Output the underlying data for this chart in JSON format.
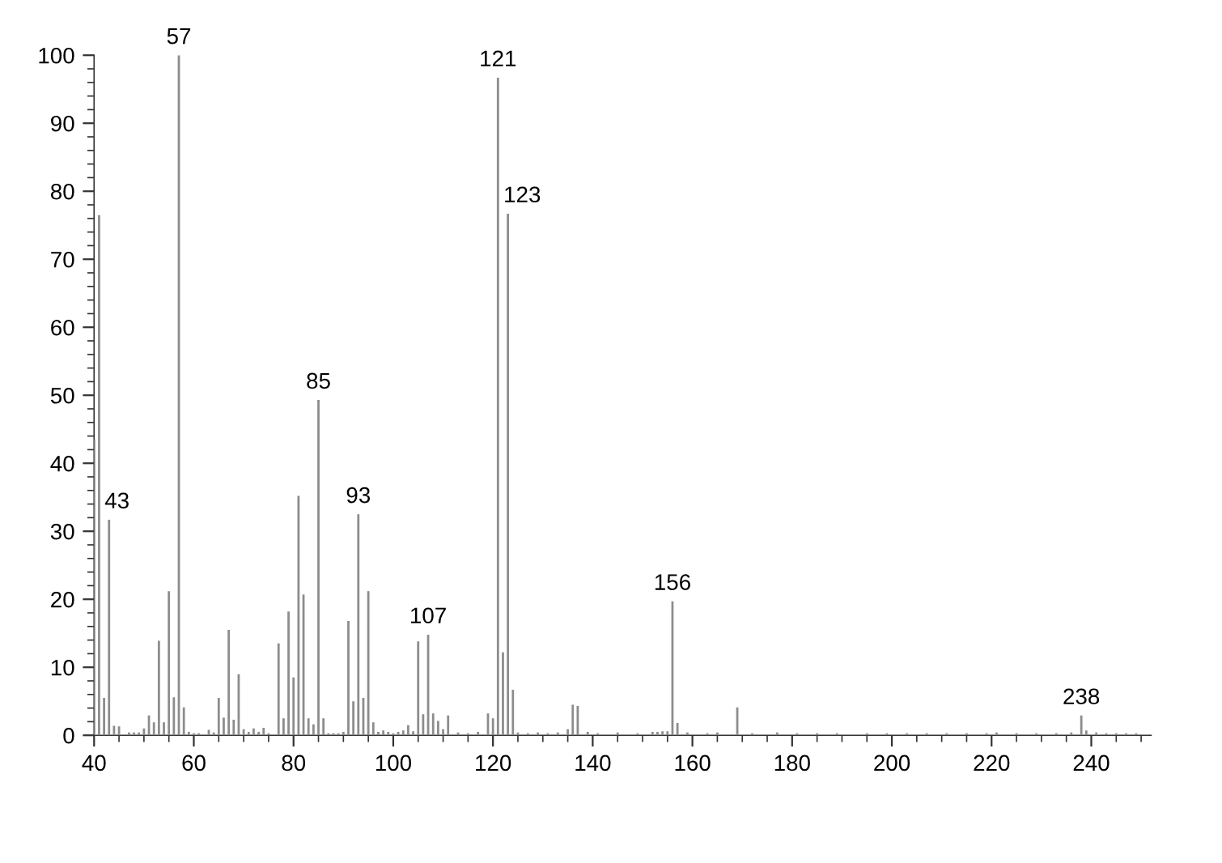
{
  "chart_data": {
    "type": "bar",
    "x": [
      40,
      41,
      42,
      43,
      44,
      45,
      47,
      48,
      49,
      50,
      51,
      52,
      53,
      54,
      55,
      56,
      57,
      58,
      59,
      60,
      61,
      63,
      64,
      65,
      66,
      67,
      68,
      69,
      70,
      71,
      72,
      73,
      74,
      75,
      77,
      78,
      79,
      80,
      81,
      82,
      83,
      84,
      85,
      86,
      87,
      88,
      89,
      90,
      91,
      92,
      93,
      94,
      95,
      96,
      97,
      98,
      99,
      100,
      101,
      102,
      103,
      104,
      105,
      106,
      107,
      108,
      109,
      110,
      111,
      113,
      115,
      117,
      119,
      120,
      121,
      122,
      123,
      124,
      125,
      127,
      129,
      131,
      133,
      135,
      136,
      137,
      139,
      141,
      145,
      149,
      152,
      153,
      154,
      155,
      156,
      157,
      159,
      163,
      165,
      169,
      172,
      177,
      181,
      185,
      189,
      195,
      199,
      203,
      207,
      211,
      215,
      219,
      221,
      225,
      229,
      233,
      236,
      238,
      239,
      241,
      243,
      245,
      247,
      249
    ],
    "values": [
      43.5,
      76.5,
      5.5,
      31.7,
      1.4,
      1.3,
      0.4,
      0.4,
      0.4,
      1.0,
      2.9,
      1.9,
      13.9,
      1.9,
      21.2,
      5.6,
      100,
      4.1,
      0.5,
      0.3,
      0.3,
      0.8,
      0.4,
      5.5,
      2.6,
      15.5,
      2.3,
      9.0,
      0.9,
      0.5,
      1.0,
      0.5,
      1.1,
      0.3,
      13.5,
      2.5,
      18.2,
      8.5,
      35.2,
      20.7,
      2.5,
      1.6,
      49.3,
      2.5,
      0.3,
      0.3,
      0.3,
      0.5,
      16.8,
      5.0,
      32.5,
      5.5,
      21.2,
      1.9,
      0.5,
      0.7,
      0.5,
      0.3,
      0.5,
      0.7,
      1.5,
      0.6,
      13.8,
      3.1,
      14.8,
      3.2,
      2.1,
      0.9,
      2.9,
      0.4,
      0.3,
      0.5,
      3.2,
      2.5,
      96.7,
      12.2,
      76.7,
      6.7,
      0.4,
      0.3,
      0.4,
      0.3,
      0.4,
      0.9,
      4.5,
      4.3,
      0.5,
      0.3,
      0.4,
      0.3,
      0.5,
      0.5,
      0.6,
      0.6,
      19.7,
      1.8,
      0.4,
      0.3,
      0.4,
      4.1,
      0.3,
      0.4,
      0.3,
      0.3,
      0.3,
      0.3,
      0.3,
      0.3,
      0.3,
      0.3,
      0.3,
      0.3,
      0.4,
      0.3,
      0.3,
      0.3,
      0.4,
      2.9,
      0.7,
      0.4,
      0.3,
      0.3,
      0.3,
      0.3
    ],
    "color": "#8c8c8c",
    "xlim": [
      40,
      252
    ],
    "xticks": [
      40,
      {
        "value": 45,
        "label": null
      },
      {
        "value": 50,
        "label": null
      },
      {
        "value": 55,
        "label": null
      },
      60,
      {
        "value": 65,
        "label": null
      },
      {
        "value": 70,
        "label": null
      },
      {
        "value": 75,
        "label": null
      },
      80,
      {
        "value": 85,
        "label": null
      },
      {
        "value": 90,
        "label": null
      },
      {
        "value": 95,
        "label": null
      },
      100,
      {
        "value": 105,
        "label": null
      },
      {
        "value": 110,
        "label": null
      },
      {
        "value": 115,
        "label": null
      },
      120,
      {
        "value": 125,
        "label": null
      },
      {
        "value": 130,
        "label": null
      },
      {
        "value": 135,
        "label": null
      },
      140,
      {
        "value": 145,
        "label": null
      },
      {
        "value": 150,
        "label": null
      },
      {
        "value": 155,
        "label": null
      },
      160,
      {
        "value": 165,
        "label": null
      },
      {
        "value": 170,
        "label": null
      },
      {
        "value": 175,
        "label": null
      },
      180,
      {
        "value": 185,
        "label": null
      },
      {
        "value": 190,
        "label": null
      },
      {
        "value": 195,
        "label": null
      },
      200,
      {
        "value": 205,
        "label": null
      },
      {
        "value": 210,
        "label": null
      },
      {
        "value": 215,
        "label": null
      },
      220,
      {
        "value": 225,
        "label": null
      },
      {
        "value": 230,
        "label": null
      },
      {
        "value": 235,
        "label": null
      },
      240,
      {
        "value": 245,
        "label": null
      },
      {
        "value": 250,
        "label": null
      }
    ],
    "ylim": [
      0,
      100
    ],
    "yticks": [
      0,
      {
        "value": 2,
        "label": null
      },
      {
        "value": 4,
        "label": null
      },
      {
        "value": 6,
        "label": null
      },
      {
        "value": 8,
        "label": null
      },
      10,
      {
        "value": 12,
        "label": null
      },
      {
        "value": 14,
        "label": null
      },
      {
        "value": 16,
        "label": null
      },
      {
        "value": 18,
        "label": null
      },
      20,
      {
        "value": 22,
        "label": null
      },
      {
        "value": 24,
        "label": null
      },
      {
        "value": 26,
        "label": null
      },
      {
        "value": 28,
        "label": null
      },
      30,
      {
        "value": 32,
        "label": null
      },
      {
        "value": 34,
        "label": null
      },
      {
        "value": 36,
        "label": null
      },
      {
        "value": 38,
        "label": null
      },
      40,
      {
        "value": 42,
        "label": null
      },
      {
        "value": 44,
        "label": null
      },
      {
        "value": 46,
        "label": null
      },
      {
        "value": 48,
        "label": null
      },
      50,
      {
        "value": 52,
        "label": null
      },
      {
        "value": 54,
        "label": null
      },
      {
        "value": 56,
        "label": null
      },
      {
        "value": 58,
        "label": null
      },
      60,
      {
        "value": 62,
        "label": null
      },
      {
        "value": 64,
        "label": null
      },
      {
        "value": 66,
        "label": null
      },
      {
        "value": 68,
        "label": null
      },
      70,
      {
        "value": 72,
        "label": null
      },
      {
        "value": 74,
        "label": null
      },
      {
        "value": 76,
        "label": null
      },
      {
        "value": 78,
        "label": null
      },
      80,
      {
        "value": 82,
        "label": null
      },
      {
        "value": 84,
        "label": null
      },
      {
        "value": 86,
        "label": null
      },
      {
        "value": 88,
        "label": null
      },
      90,
      {
        "value": 92,
        "label": null
      },
      {
        "value": 94,
        "label": null
      },
      {
        "value": 96,
        "label": null
      },
      {
        "value": 98,
        "label": null
      },
      100
    ],
    "grid": false,
    "legend": false,
    "annotations": [
      {
        "text": "43",
        "x": 43,
        "y": 31.7
      },
      {
        "text": "57",
        "x": 57,
        "y": 100
      },
      {
        "text": "85",
        "x": 85,
        "y": 49.3
      },
      {
        "text": "93",
        "x": 93,
        "y": 32.5
      },
      {
        "text": "107",
        "x": 107,
        "y": 14.8
      },
      {
        "text": "121",
        "x": 121,
        "y": 96.7
      },
      {
        "text": "123",
        "x": 123,
        "y": 76.7
      },
      {
        "text": "156",
        "x": 156,
        "y": 19.7
      },
      {
        "text": "238",
        "x": 238,
        "y": 2.9
      }
    ]
  }
}
